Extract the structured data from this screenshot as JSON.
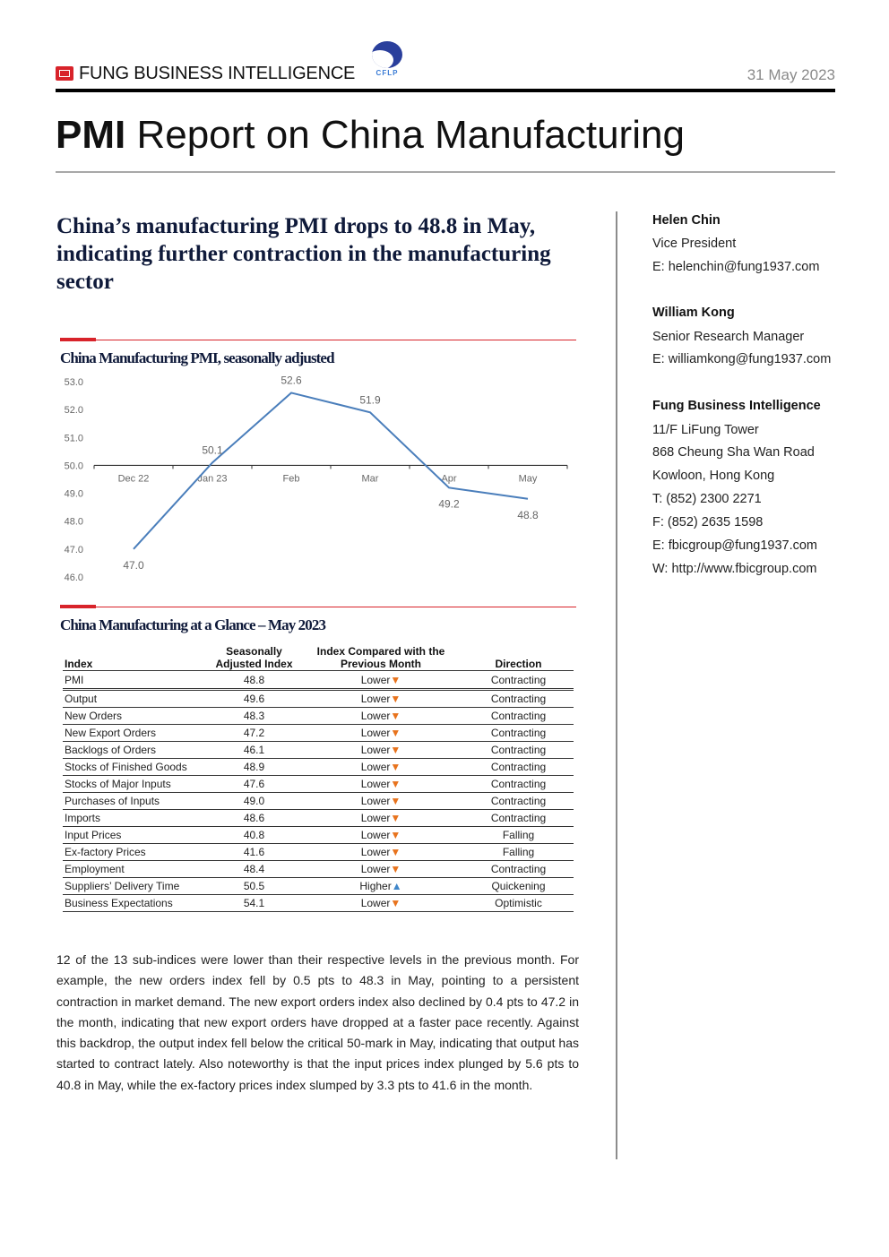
{
  "header": {
    "brand": "FUNG BUSINESS INTELLIGENCE",
    "partner_logo_text": "CFLP",
    "date": "31 May 2023",
    "title_bold": "PMI",
    "title_rest": " Report on China Manufacturing"
  },
  "headline": "China’s manufacturing PMI drops to 48.8 in May, indicating further contraction in the manufacturing sector",
  "chart_section": {
    "title": "China Manufacturing PMI, seasonally adjusted"
  },
  "chart_data": {
    "type": "line",
    "title": "China Manufacturing PMI, seasonally adjusted",
    "categories": [
      "Dec 22",
      "Jan 23",
      "Feb",
      "Mar",
      "Apr",
      "May"
    ],
    "series": [
      {
        "values": [
          47.0,
          50.1,
          52.6,
          51.9,
          49.2,
          48.8
        ]
      }
    ],
    "data_labels": [
      "47.0",
      "50.1",
      "52.6",
      "51.9",
      "49.2",
      "48.8"
    ],
    "y_ticks": [
      "53.0",
      "52.0",
      "51.0",
      "50.0",
      "49.0",
      "48.0",
      "47.0",
      "46.0"
    ],
    "ylim": [
      46,
      53
    ],
    "x_axis_crosses_at": 50,
    "grid": false,
    "line_color": "#4a7ebb"
  },
  "table_section": {
    "title": "China Manufacturing at a Glance – May 2023"
  },
  "table": {
    "headers": [
      "Index",
      "Seasonally Adjusted Index",
      "Index Compared with the Previous Month",
      "Direction"
    ],
    "header_lines": {
      "index": "Index",
      "sa_1": "Seasonally",
      "sa_2": "Adjusted Index",
      "cmp_1": "Index Compared with the",
      "cmp_2": "Previous Month",
      "direction": "Direction"
    },
    "rows": [
      {
        "index": "PMI",
        "value": "48.8",
        "compare": "Lower",
        "arrow": "▼",
        "direction": "Contracting"
      },
      {
        "index": "Output",
        "value": "49.6",
        "compare": "Lower",
        "arrow": "▼",
        "direction": "Contracting"
      },
      {
        "index": "New Orders",
        "value": "48.3",
        "compare": "Lower",
        "arrow": "▼",
        "direction": "Contracting"
      },
      {
        "index": "New Export Orders",
        "value": "47.2",
        "compare": "Lower",
        "arrow": "▼",
        "direction": "Contracting"
      },
      {
        "index": "Backlogs of Orders",
        "value": "46.1",
        "compare": "Lower",
        "arrow": "▼",
        "direction": "Contracting"
      },
      {
        "index": "Stocks of Finished Goods",
        "value": "48.9",
        "compare": "Lower",
        "arrow": "▼",
        "direction": "Contracting"
      },
      {
        "index": "Stocks of Major Inputs",
        "value": "47.6",
        "compare": "Lower",
        "arrow": "▼",
        "direction": "Contracting"
      },
      {
        "index": "Purchases of Inputs",
        "value": "49.0",
        "compare": "Lower",
        "arrow": "▼",
        "direction": "Contracting"
      },
      {
        "index": "Imports",
        "value": "48.6",
        "compare": "Lower",
        "arrow": "▼",
        "direction": "Contracting"
      },
      {
        "index": "Input Prices",
        "value": "40.8",
        "compare": "Lower",
        "arrow": "▼",
        "direction": "Falling"
      },
      {
        "index": "Ex-factory Prices",
        "value": "41.6",
        "compare": "Lower",
        "arrow": "▼",
        "direction": "Falling"
      },
      {
        "index": "Employment",
        "value": "48.4",
        "compare": "Lower",
        "arrow": "▼",
        "direction": "Contracting"
      },
      {
        "index": "Suppliers’ Delivery Time",
        "value": "50.5",
        "compare": "Higher",
        "arrow": "▲",
        "direction": "Quickening"
      },
      {
        "index": "Business Expectations",
        "value": "54.1",
        "compare": "Lower",
        "arrow": "▼",
        "direction": "Optimistic"
      }
    ]
  },
  "body_text": "12 of the 13 sub-indices were lower than their respective levels in the previous month. For example, the new orders index fell by 0.5 pts to 48.3 in May, pointing to a persistent contraction in market demand. The new export orders index also declined by 0.4 pts to 47.2 in the month, indicating that new export orders have dropped at a faster pace recently. Against this backdrop, the output index fell below the critical 50-mark in May, indicating that output has started to contract lately. Also noteworthy is that the input prices index plunged by 5.6 pts to 40.8 in May, while the ex-factory prices index slumped by 3.3 pts to 41.6 in the month.",
  "contacts": {
    "person1": {
      "name": "Helen Chin",
      "title": "Vice President",
      "email": "E: helenchin@fung1937.com"
    },
    "person2": {
      "name": "William Kong",
      "title": "Senior Research Manager",
      "email": "E: williamkong@fung1937.com"
    },
    "org": {
      "name": "Fung Business Intelligence",
      "addr1": "11/F LiFung Tower",
      "addr2": "868 Cheung Sha Wan Road",
      "addr3": "Kowloon, Hong Kong",
      "tel": "T: (852) 2300 2271",
      "fax": "F: (852) 2635 1598",
      "email": "E: fbicgroup@fung1937.com",
      "web": "W: http://www.fbicgroup.com"
    }
  },
  "colors": {
    "accent_red": "#d8232a",
    "navy": "#0f1a3a",
    "down_arrow": "#e8731d",
    "up_arrow": "#3f86c9"
  }
}
